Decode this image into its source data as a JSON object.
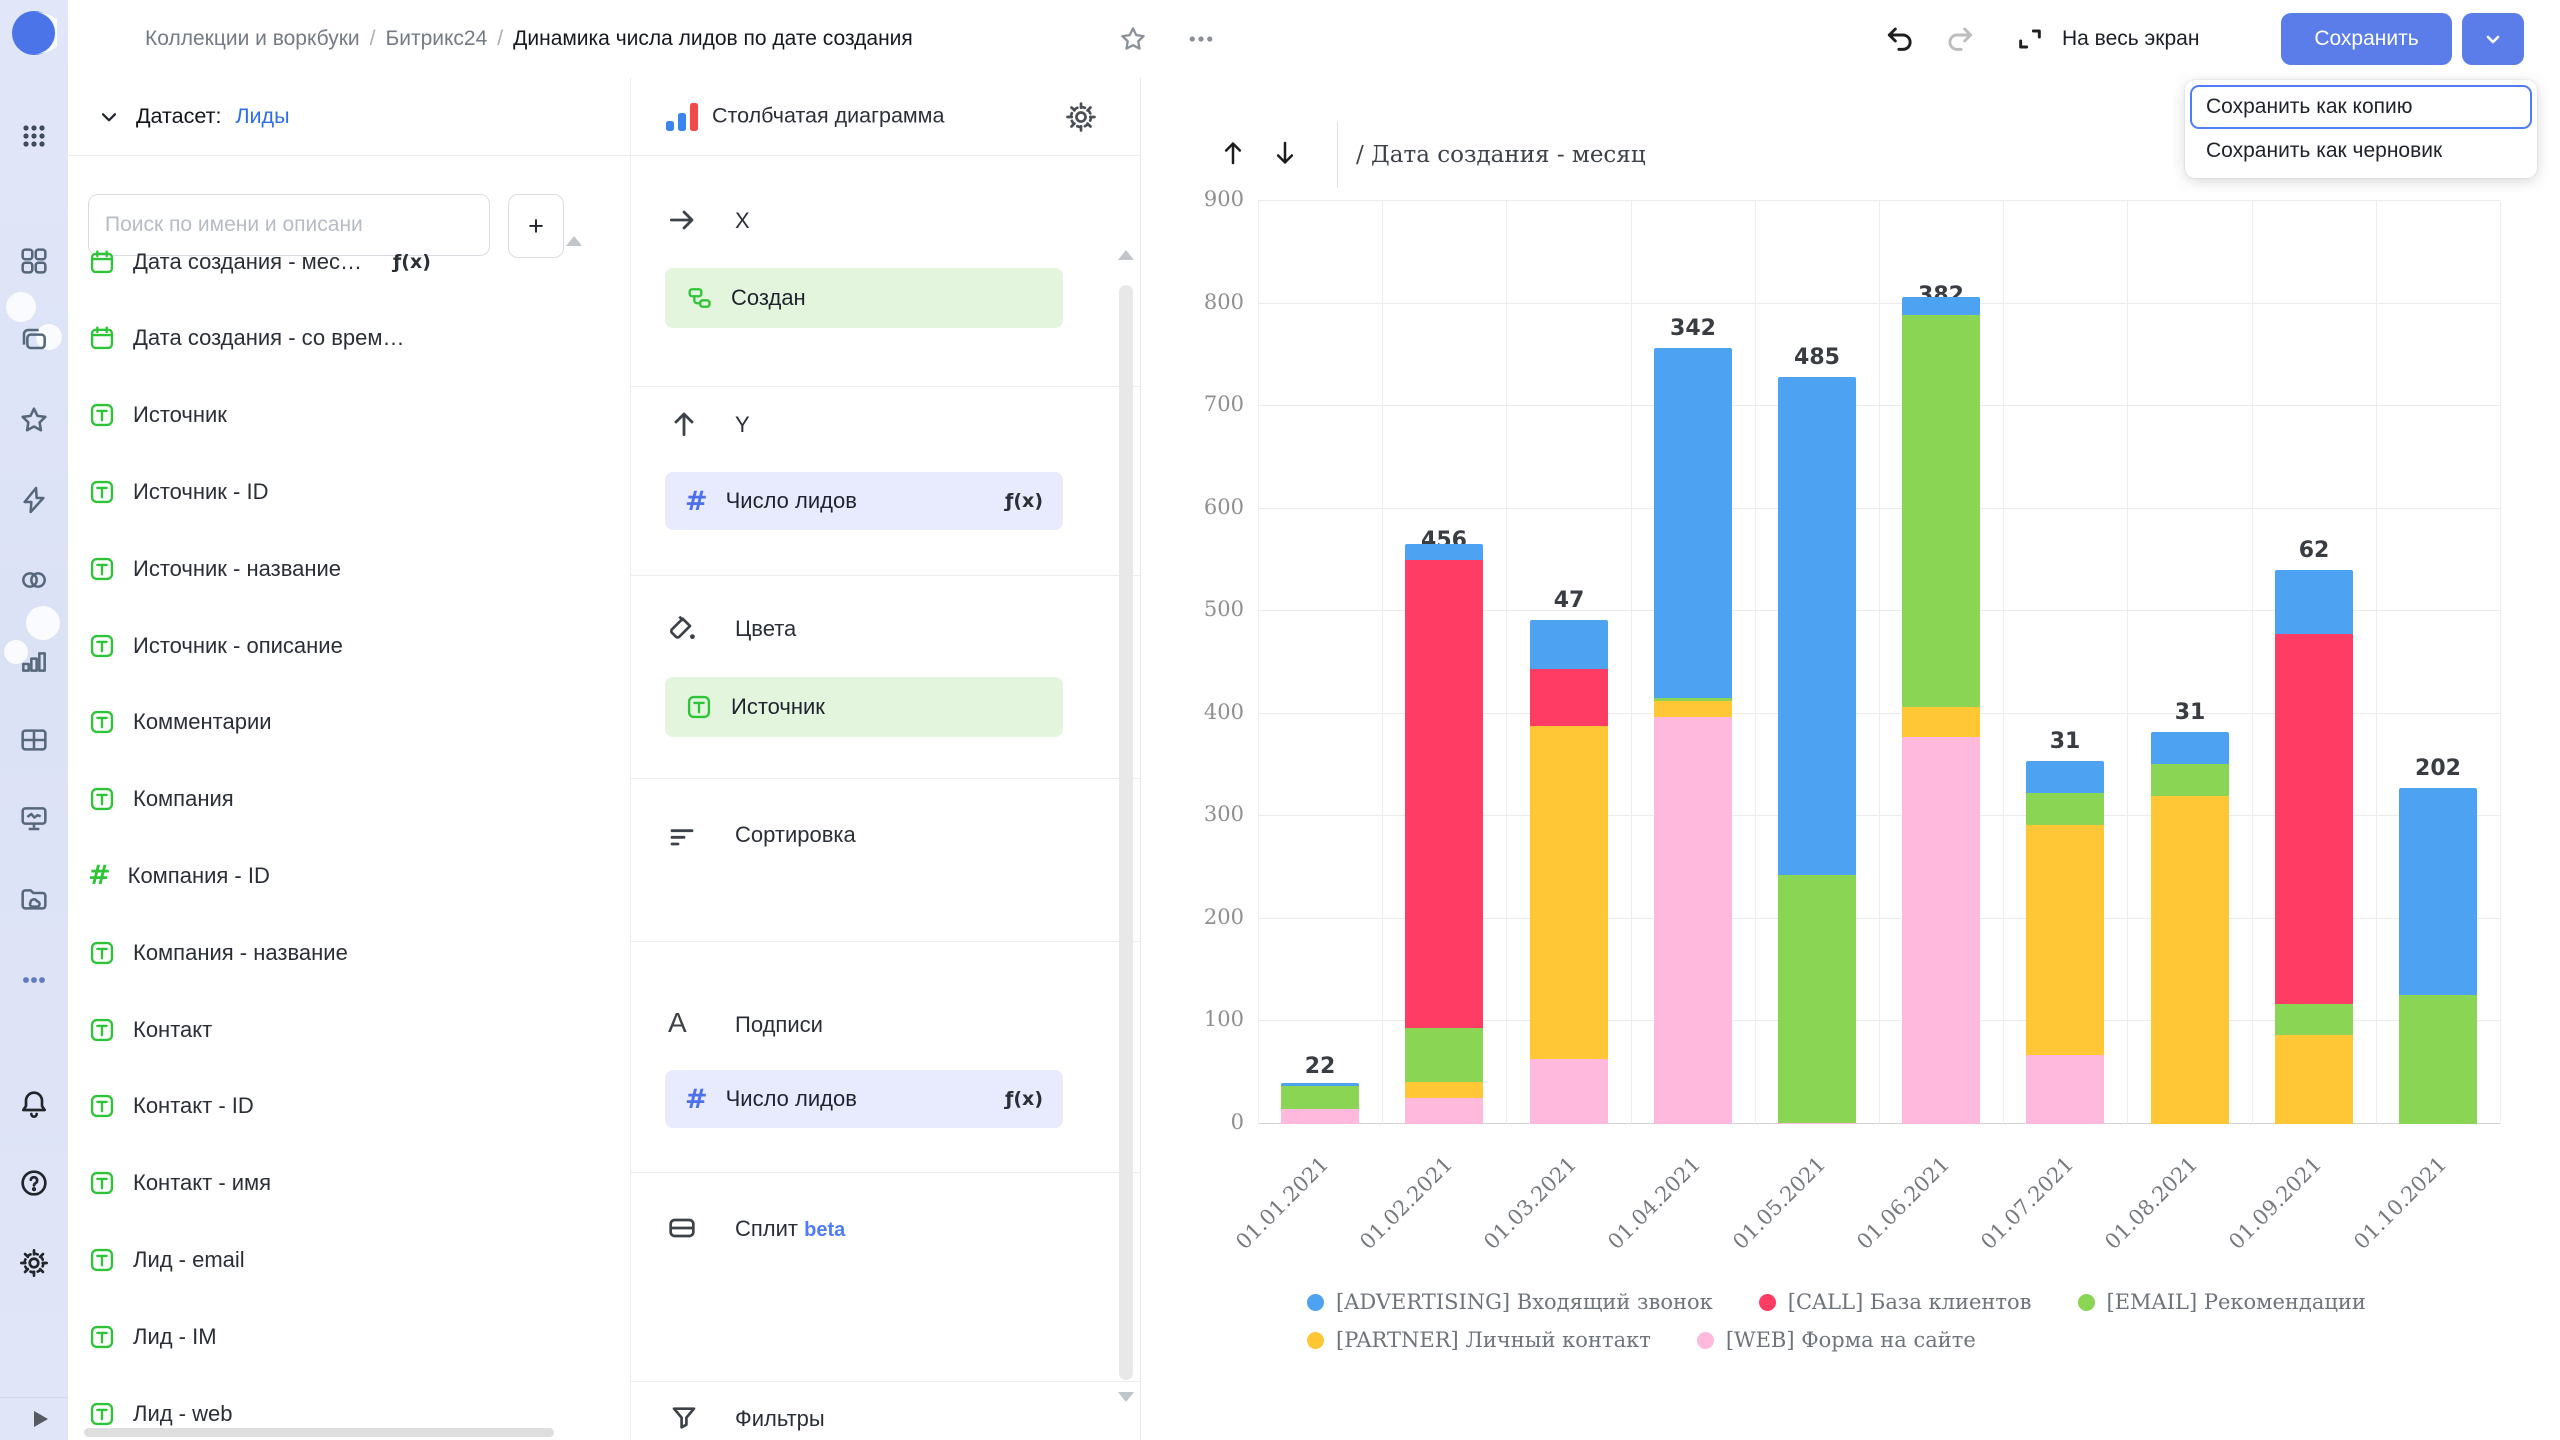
{
  "topbar": {
    "breadcrumbs": [
      {
        "label": "Коллекции и воркбуки",
        "current": false
      },
      {
        "label": "Битрикс24",
        "current": false
      },
      {
        "label": "Динамика числа лидов по дате создания",
        "current": true
      }
    ],
    "fullscreen_label": "На весь экран",
    "save_label": "Сохранить",
    "save_menu": [
      "Сохранить как копию",
      "Сохранить как черновик"
    ],
    "save_menu_focused_index": 0
  },
  "rail": {
    "icons": [
      "datalens-logo",
      "apps-grid",
      "collections",
      "workbooks",
      "favorites",
      "quick-actions",
      "connections",
      "charts",
      "tables",
      "dashboards",
      "storage",
      "more",
      "notifications",
      "help",
      "settings",
      "expand-sidebar"
    ]
  },
  "dataset_panel": {
    "header_label": "Датасет:",
    "dataset_name": "Лиды",
    "search_placeholder": "Поиск по имени и описани",
    "add_button_label": "+",
    "fields": [
      {
        "name": "Дата создания - мес…",
        "type": "date",
        "fx": true
      },
      {
        "name": "Дата создания - со врем…",
        "type": "date",
        "fx": false
      },
      {
        "name": "Источник",
        "type": "string",
        "fx": false
      },
      {
        "name": "Источник - ID",
        "type": "string",
        "fx": false
      },
      {
        "name": "Источник - название",
        "type": "string",
        "fx": false
      },
      {
        "name": "Источник - описание",
        "type": "string",
        "fx": false
      },
      {
        "name": "Комментарии",
        "type": "string",
        "fx": false
      },
      {
        "name": "Компания",
        "type": "string",
        "fx": false
      },
      {
        "name": "Компания - ID",
        "type": "number",
        "fx": false
      },
      {
        "name": "Компания - название",
        "type": "string",
        "fx": false
      },
      {
        "name": "Контакт",
        "type": "string",
        "fx": false
      },
      {
        "name": "Контакт - ID",
        "type": "string",
        "fx": false
      },
      {
        "name": "Контакт - имя",
        "type": "string",
        "fx": false
      },
      {
        "name": "Лид - email",
        "type": "string",
        "fx": false
      },
      {
        "name": "Лид - IM",
        "type": "string",
        "fx": false
      },
      {
        "name": "Лид - web",
        "type": "string",
        "fx": false
      }
    ]
  },
  "config_panel": {
    "chart_type": "Столбчатая диаграмма",
    "sections": {
      "x": {
        "label": "X",
        "pill": {
          "name": "Создан",
          "fx": false
        }
      },
      "y": {
        "label": "Y",
        "pill": {
          "name": "Число лидов",
          "fx": true
        }
      },
      "colors": {
        "label": "Цвета",
        "pill": {
          "name": "Источник",
          "fx": false
        }
      },
      "sort": {
        "label": "Сортировка"
      },
      "labels": {
        "label": "Подписи",
        "pill": {
          "name": "Число лидов",
          "fx": true
        }
      },
      "split": {
        "label": "Сплит",
        "badge": "beta"
      },
      "filters": {
        "label": "Фильтры"
      }
    },
    "fx_badge": "ƒ(x)"
  },
  "chart_data": {
    "type": "bar",
    "stacked": true,
    "title": "/ Дата создания - месяц",
    "xlabel": "",
    "ylabel": "",
    "ylim": [
      0,
      900
    ],
    "ytick_step": 100,
    "grid": true,
    "legend_position": "bottom",
    "categories": [
      "01.01.2021",
      "01.02.2021",
      "01.03.2021",
      "01.04.2021",
      "01.05.2021",
      "01.06.2021",
      "01.07.2021",
      "01.08.2021",
      "01.09.2021",
      "01.10.2021"
    ],
    "stack_order": [
      "web",
      "partner",
      "email",
      "call",
      "advertising"
    ],
    "legend_rows": [
      [
        "advertising",
        "call",
        "email"
      ],
      [
        "partner",
        "web"
      ]
    ],
    "series": [
      {
        "key": "web",
        "name": "[WEB] Форма на сайте",
        "color": "#FFB9DD",
        "values": [
          15,
          25,
          63,
          397,
          1,
          377,
          67,
          0,
          0,
          0
        ],
        "labels_shown": [
          false,
          true,
          true,
          true,
          true,
          true,
          true,
          false,
          false,
          false
        ]
      },
      {
        "key": "partner",
        "name": "[PARTNER] Личный контакт",
        "color": "#FFC636",
        "values": [
          0,
          16,
          325,
          15,
          0,
          30,
          225,
          320,
          87,
          0
        ],
        "labels_shown": [
          false,
          false,
          true,
          false,
          false,
          true,
          true,
          true,
          true,
          false
        ]
      },
      {
        "key": "email",
        "name": "[EMAIL] Рекомендации",
        "color": "#8AD554",
        "values": [
          22,
          53,
          0,
          3,
          242,
          382,
          31,
          31,
          30,
          126
        ],
        "labels_shown": [
          true,
          true,
          false,
          false,
          true,
          true,
          true,
          true,
          true,
          true
        ]
      },
      {
        "key": "call",
        "name": "[CALL] База клиентов",
        "color": "#FF3D64",
        "values": [
          0,
          456,
          56,
          0,
          0,
          0,
          0,
          0,
          361,
          0
        ],
        "labels_shown": [
          false,
          true,
          true,
          false,
          false,
          false,
          false,
          false,
          true,
          false
        ]
      },
      {
        "key": "advertising",
        "name": "[ADVERTISING] Входящий звонок",
        "color": "#4DA2F1",
        "values": [
          3,
          16,
          47,
          342,
          485,
          17,
          31,
          31,
          62,
          202
        ],
        "labels_shown": [
          false,
          false,
          true,
          true,
          true,
          false,
          true,
          true,
          true,
          true
        ]
      }
    ]
  },
  "colors": {
    "accent_blue": "#5a7de9",
    "link_blue": "#2e6fe9",
    "outline_blue": "#4f7cf7",
    "field_green": "#2fc437",
    "measure_blue": "#4d6fe9"
  }
}
